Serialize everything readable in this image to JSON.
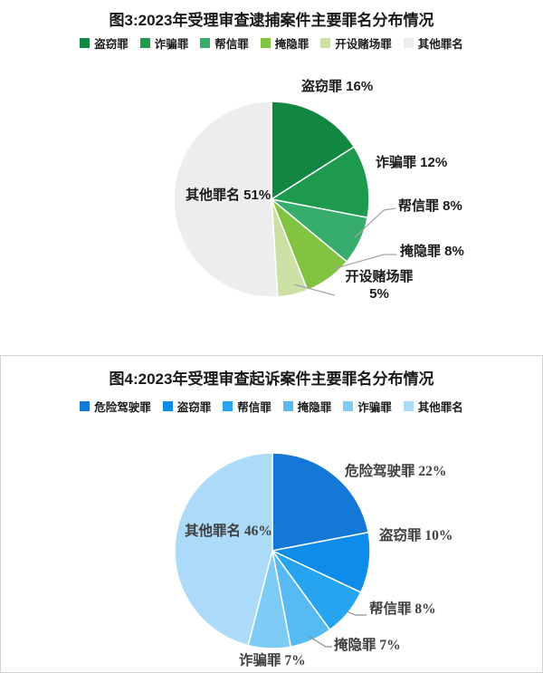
{
  "chart_data": [
    {
      "type": "pie",
      "title": "图3:2023年受理审查逮捕案件主要罪名分布情况",
      "legend_position": "top",
      "start_angle_deg": 0,
      "direction": "clockwise",
      "unit": "percent",
      "palette_theme": "green",
      "slices": [
        {
          "name": "盗窃罪",
          "value": 16,
          "label": "盗窃罪 16%",
          "color": "#128742"
        },
        {
          "name": "诈骗罪",
          "value": 12,
          "label": "诈骗罪 12%",
          "color": "#1d9a4d"
        },
        {
          "name": "帮信罪",
          "value": 8,
          "label": "帮信罪 8%",
          "color": "#36ad6c"
        },
        {
          "name": "掩隐罪",
          "value": 8,
          "label": "掩隐罪 8%",
          "color": "#82c341"
        },
        {
          "name": "开设赌场罪",
          "value": 5,
          "label": "开设赌场罪 5%",
          "color": "#cde0a6"
        },
        {
          "name": "其他罪名",
          "value": 51,
          "label": "其他罪名 51%",
          "color": "#ededed"
        }
      ]
    },
    {
      "type": "pie",
      "title": "图4:2023年受理审查起诉案件主要罪名分布情况",
      "legend_position": "top",
      "start_angle_deg": 0,
      "direction": "clockwise",
      "unit": "percent",
      "palette_theme": "blue",
      "slices": [
        {
          "name": "危险驾驶罪",
          "value": 22,
          "label": "危险驾驶罪 22%",
          "color": "#1478d6"
        },
        {
          "name": "盗窃罪",
          "value": 10,
          "label": "盗窃罪 10%",
          "color": "#0d8de9"
        },
        {
          "name": "帮信罪",
          "value": 8,
          "label": "帮信罪 8%",
          "color": "#27a4ef"
        },
        {
          "name": "掩隐罪",
          "value": 7,
          "label": "掩隐罪 7%",
          "color": "#58baf2"
        },
        {
          "name": "诈骗罪",
          "value": 7,
          "label": "诈骗罪 7%",
          "color": "#7ecbf5"
        },
        {
          "name": "其他罪名",
          "value": 46,
          "label": "其他罪名 46%",
          "color": "#abdbf8"
        }
      ]
    }
  ]
}
